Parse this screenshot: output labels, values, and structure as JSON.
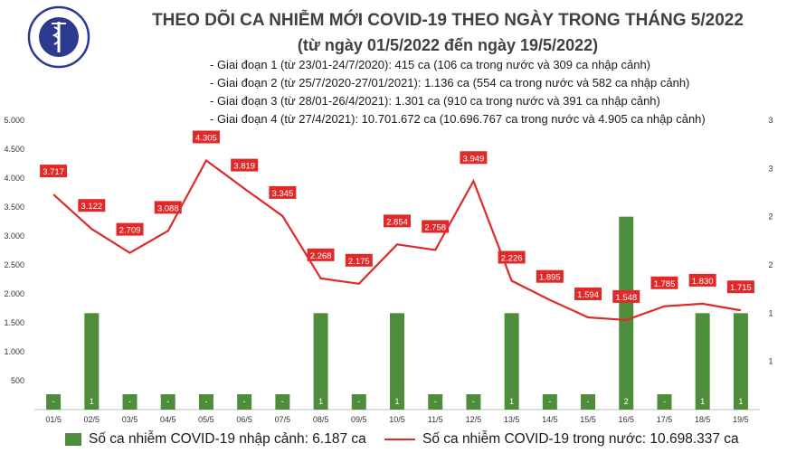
{
  "header": {
    "title": "THEO DÕI CA NHIỄM MỚI COVID-19 THEO NGÀY TRONG THÁNG 5/2022",
    "subtitle": "(từ ngày 01/5/2022 đến ngày 19/5/2022)",
    "phases": [
      "- Giai đoạn 1 (từ 23/01-24/7/2020): 415 ca (106 ca trong nước và 309 ca nhập cảnh)",
      "- Giai đoạn 2 (từ 25/7/2020-27/01/2021): 1.136 ca (554 ca trong nước và 582 ca nhập cảnh)",
      "- Giai đoạn 3 (từ 28/01-26/4/2021): 1.301 ca (910 ca trong nước và 391 ca nhập cảnh)",
      "- Giai đoạn 4 (từ 27/4/2021): 10.701.672 ca (10.696.767 ca trong nước và 4.905 ca nhập cảnh)"
    ]
  },
  "logo": {
    "top_text": "BỘ Y TẾ",
    "bottom_text": "MINISTRY OF HEALTH"
  },
  "chart_data": {
    "type": "bar+line",
    "categories": [
      "01/5",
      "02/5",
      "03/5",
      "04/5",
      "05/5",
      "06/5",
      "07/5",
      "08/5",
      "09/5",
      "10/5",
      "11/5",
      "12/5",
      "13/5",
      "14/5",
      "15/5",
      "16/5",
      "17/5",
      "18/5",
      "19/5"
    ],
    "series": [
      {
        "name": "Số ca nhiễm COVID-19 nhập cảnh: 6.187 ca",
        "type": "bar",
        "axis": "right",
        "values": [
          0,
          1,
          0,
          0,
          0,
          0,
          0,
          1,
          0,
          1,
          0,
          0,
          1,
          0,
          0,
          2,
          0,
          1,
          1
        ],
        "labels": [
          "-",
          "1",
          "-",
          "-",
          "-",
          "-",
          "-",
          "1",
          "-",
          "1",
          "-",
          "-",
          "1",
          "-",
          "-",
          "2",
          "-",
          "1",
          "1"
        ]
      },
      {
        "name": "Số ca nhiễm COVID-19 trong nước: 10.698.337 ca",
        "type": "line",
        "axis": "left",
        "values": [
          3717,
          3122,
          2709,
          3088,
          4305,
          3819,
          3345,
          2268,
          2175,
          2854,
          2758,
          3949,
          2226,
          1895,
          1594,
          1548,
          1785,
          1830,
          1715
        ],
        "labels": [
          "3.717",
          "3.122",
          "2.709",
          "3.088",
          "4.305",
          "3.819",
          "3.345",
          "2.268",
          "2.175",
          "2.854",
          "2.758",
          "3.949",
          "2.226",
          "1.895",
          "1.594",
          "1.548",
          "1.785",
          "1.830",
          "1.715"
        ]
      }
    ],
    "y_left": {
      "ylim": [
        0,
        5000
      ],
      "ticks": [
        "",
        "500",
        "1.000",
        "1.500",
        "2.000",
        "2.500",
        "3.000",
        "3.500",
        "4.000",
        "4.500",
        "5.000"
      ]
    },
    "y_right": {
      "ylim": [
        0,
        3
      ],
      "ticks": [
        "1",
        "1",
        "2",
        "2",
        "3",
        "3"
      ]
    },
    "colors": {
      "bar": "#4e8d3c",
      "line": "#e02a2a",
      "label_bg": "#e02a2a",
      "label_text": "#ffffff"
    },
    "legend_placement": "bottom"
  }
}
